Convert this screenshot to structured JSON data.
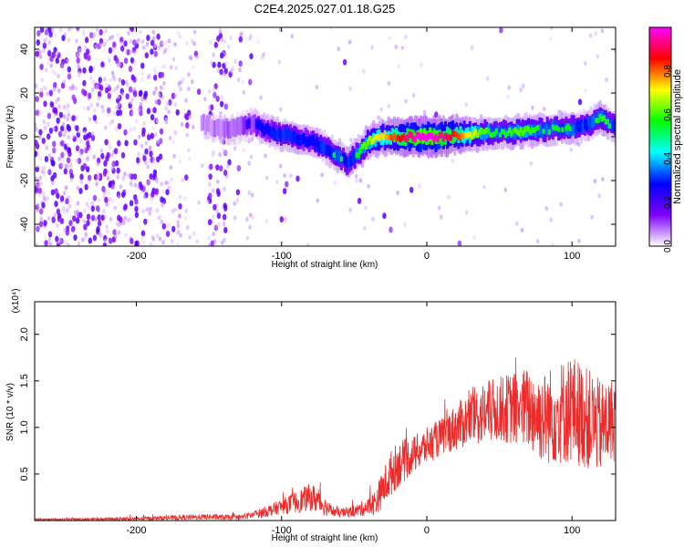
{
  "title": "C2E4.2025.027.01.18.G25",
  "chart_data": [
    {
      "type": "heatmap",
      "xlabel": "Height of straight line (km)",
      "ylabel": "Frequency (Hz)",
      "xlim": [
        -270,
        130
      ],
      "ylim": [
        -50,
        50
      ],
      "xticks": [
        -200,
        -100,
        0,
        100
      ],
      "yticks": [
        -40,
        -20,
        0,
        20,
        40
      ],
      "colorbar": {
        "label": "Normalized spectral amplitude",
        "range": [
          0,
          1
        ],
        "ticks": [
          "0.0",
          "0.2",
          "0.4",
          "0.6",
          "0.8"
        ],
        "colormap": [
          "#ffffff",
          "#7f00ff",
          "#0000ff",
          "#00ffff",
          "#00ff00",
          "#ffff00",
          "#ff0000",
          "#ff00ff"
        ]
      },
      "ridge": {
        "x": [
          -155,
          -140,
          -130,
          -120,
          -110,
          -100,
          -90,
          -80,
          -70,
          -60,
          -55,
          -50,
          -45,
          -40,
          -30,
          -20,
          -10,
          0,
          10,
          20,
          30,
          40,
          50,
          60,
          70,
          80,
          90,
          100,
          110,
          120,
          130
        ],
        "freq": [
          6,
          3,
          4,
          6,
          3,
          1,
          0,
          -2,
          -5,
          -9,
          -12,
          -9,
          -6,
          -2,
          0,
          0,
          0,
          0,
          0,
          1,
          1,
          2,
          2,
          2,
          3,
          3,
          4,
          4,
          5,
          9,
          4
        ],
        "amplitude": [
          0.2,
          0.3,
          0.35,
          0.4,
          0.45,
          0.5,
          0.5,
          0.45,
          0.5,
          0.55,
          0.5,
          0.55,
          0.6,
          0.65,
          0.75,
          0.85,
          0.95,
          1.0,
          0.95,
          0.85,
          0.7,
          0.6,
          0.55,
          0.6,
          0.6,
          0.55,
          0.55,
          0.55,
          0.5,
          0.6,
          0.5
        ]
      }
    },
    {
      "type": "line",
      "xlabel": "Height of straight line (km)",
      "ylabel": "SNR (10 * v/v)",
      "y_multiplier": "(x10⁴)",
      "xlim": [
        -270,
        130
      ],
      "ylim": [
        0,
        2.35
      ],
      "xticks": [
        -200,
        -100,
        0,
        100
      ],
      "yticks": [
        0.5,
        1.0,
        1.5,
        2.0
      ],
      "color": "#ee2b2b",
      "envelope": {
        "x": [
          -270,
          -200,
          -150,
          -130,
          -120,
          -110,
          -100,
          -90,
          -80,
          -75,
          -70,
          -65,
          -60,
          -50,
          -40,
          -35,
          -30,
          -25,
          -20,
          -10,
          0,
          10,
          20,
          30,
          40,
          50,
          60,
          70,
          80,
          90,
          100,
          110,
          120,
          130
        ],
        "mean": [
          0.01,
          0.02,
          0.04,
          0.03,
          0.06,
          0.1,
          0.15,
          0.2,
          0.25,
          0.22,
          0.15,
          0.1,
          0.08,
          0.1,
          0.15,
          0.2,
          0.35,
          0.5,
          0.6,
          0.7,
          0.8,
          0.9,
          1.0,
          1.1,
          1.15,
          1.2,
          1.2,
          1.2,
          1.1,
          1.15,
          1.2,
          1.1,
          1.0,
          1.1
        ],
        "amplitude": [
          0.01,
          0.02,
          0.03,
          0.03,
          0.04,
          0.06,
          0.08,
          0.12,
          0.15,
          0.15,
          0.1,
          0.06,
          0.05,
          0.06,
          0.1,
          0.15,
          0.2,
          0.25,
          0.25,
          0.2,
          0.2,
          0.2,
          0.25,
          0.3,
          0.35,
          0.35,
          0.4,
          0.45,
          0.5,
          0.55,
          0.6,
          0.55,
          0.5,
          0.45
        ]
      }
    }
  ]
}
